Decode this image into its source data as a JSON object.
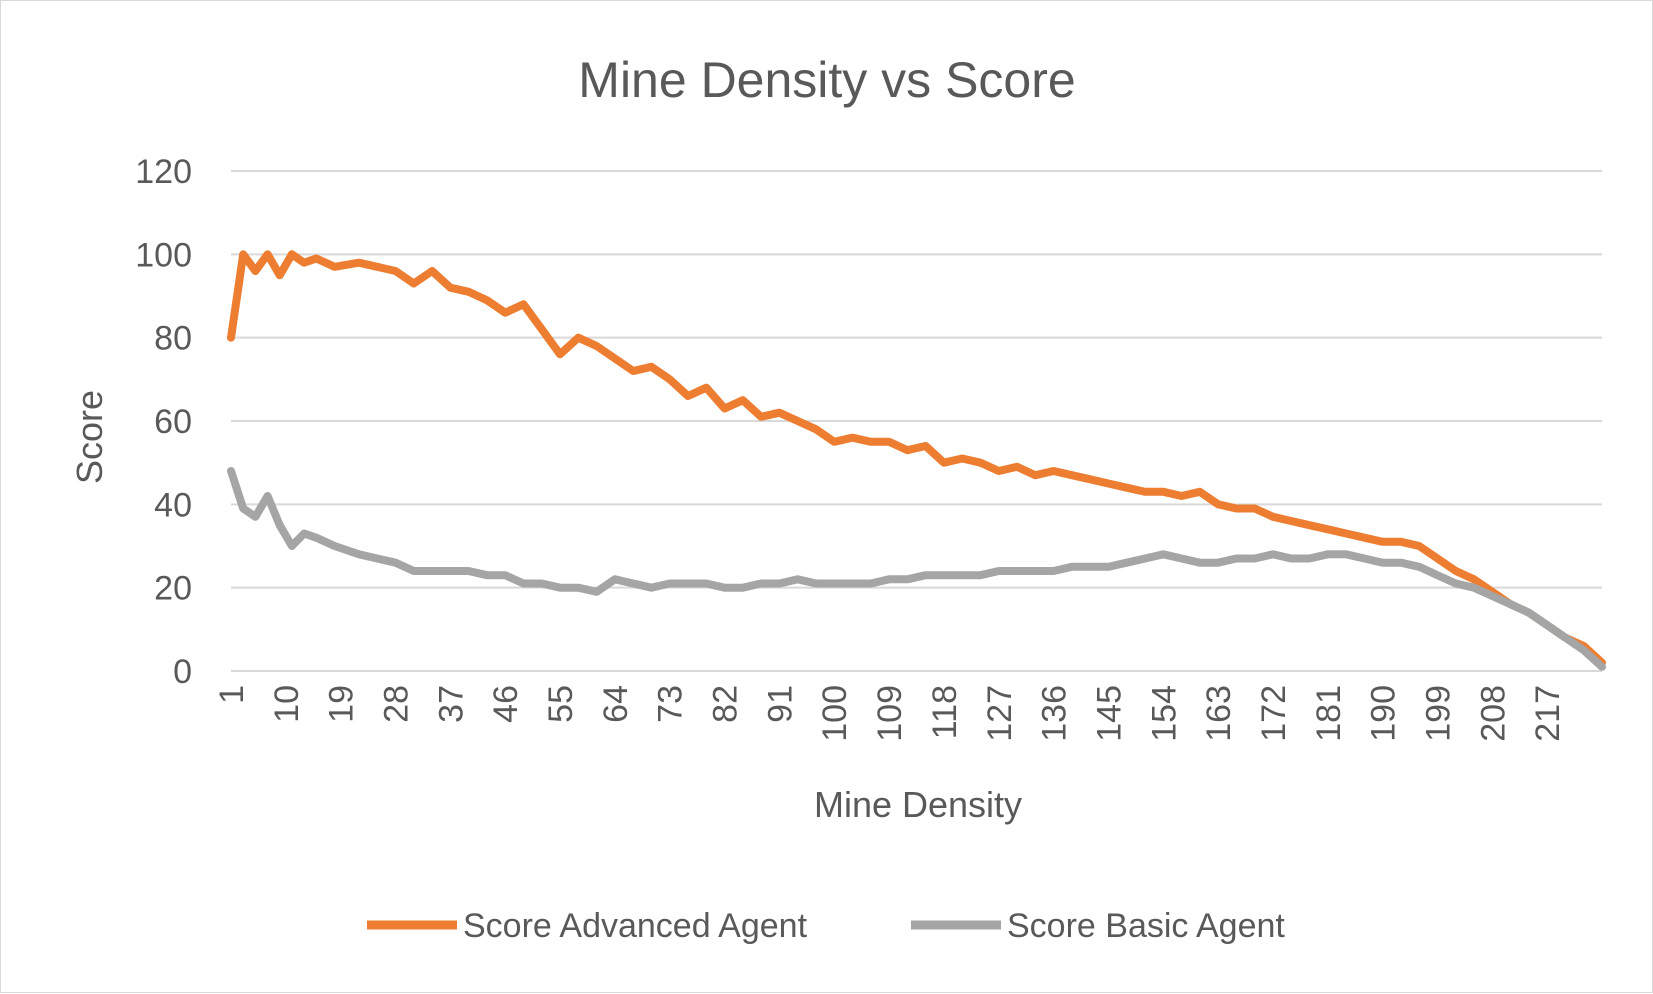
{
  "chart_data": {
    "type": "line",
    "title": "Mine Density vs Score",
    "xlabel": "Mine Density",
    "ylabel": "Score",
    "ylim": [
      0,
      120
    ],
    "yticks": [
      0,
      20,
      40,
      60,
      80,
      100,
      120
    ],
    "x_range": [
      1,
      226
    ],
    "xticks": [
      1,
      10,
      19,
      28,
      37,
      46,
      55,
      64,
      73,
      82,
      91,
      100,
      109,
      118,
      127,
      136,
      145,
      154,
      163,
      172,
      181,
      190,
      199,
      208,
      217
    ],
    "grid": true,
    "legend_position": "bottom",
    "colors": {
      "advanced": "#ed7d31",
      "basic": "#a5a5a5",
      "grid": "#d9d9d9",
      "text": "#595959"
    },
    "series": [
      {
        "name": "Score Advanced Agent",
        "points": [
          [
            1,
            80
          ],
          [
            3,
            100
          ],
          [
            5,
            96
          ],
          [
            7,
            100
          ],
          [
            9,
            95
          ],
          [
            11,
            100
          ],
          [
            13,
            98
          ],
          [
            15,
            99
          ],
          [
            18,
            97
          ],
          [
            22,
            98
          ],
          [
            25,
            97
          ],
          [
            28,
            96
          ],
          [
            31,
            93
          ],
          [
            34,
            96
          ],
          [
            37,
            92
          ],
          [
            40,
            91
          ],
          [
            43,
            89
          ],
          [
            46,
            86
          ],
          [
            49,
            88
          ],
          [
            52,
            82
          ],
          [
            55,
            76
          ],
          [
            58,
            80
          ],
          [
            61,
            78
          ],
          [
            64,
            75
          ],
          [
            67,
            72
          ],
          [
            70,
            73
          ],
          [
            73,
            70
          ],
          [
            76,
            66
          ],
          [
            79,
            68
          ],
          [
            82,
            63
          ],
          [
            85,
            65
          ],
          [
            88,
            61
          ],
          [
            91,
            62
          ],
          [
            94,
            60
          ],
          [
            97,
            58
          ],
          [
            100,
            55
          ],
          [
            103,
            56
          ],
          [
            106,
            55
          ],
          [
            109,
            55
          ],
          [
            112,
            53
          ],
          [
            115,
            54
          ],
          [
            118,
            50
          ],
          [
            121,
            51
          ],
          [
            124,
            50
          ],
          [
            127,
            48
          ],
          [
            130,
            49
          ],
          [
            133,
            47
          ],
          [
            136,
            48
          ],
          [
            139,
            47
          ],
          [
            142,
            46
          ],
          [
            145,
            45
          ],
          [
            148,
            44
          ],
          [
            151,
            43
          ],
          [
            154,
            43
          ],
          [
            157,
            42
          ],
          [
            160,
            43
          ],
          [
            163,
            40
          ],
          [
            166,
            39
          ],
          [
            169,
            39
          ],
          [
            172,
            37
          ],
          [
            175,
            36
          ],
          [
            178,
            35
          ],
          [
            181,
            34
          ],
          [
            184,
            33
          ],
          [
            187,
            32
          ],
          [
            190,
            31
          ],
          [
            193,
            31
          ],
          [
            196,
            30
          ],
          [
            199,
            27
          ],
          [
            202,
            24
          ],
          [
            205,
            22
          ],
          [
            208,
            19
          ],
          [
            211,
            16
          ],
          [
            214,
            14
          ],
          [
            217,
            11
          ],
          [
            220,
            8
          ],
          [
            223,
            6
          ],
          [
            226,
            2
          ]
        ]
      },
      {
        "name": "Score Basic Agent",
        "points": [
          [
            1,
            48
          ],
          [
            3,
            39
          ],
          [
            5,
            37
          ],
          [
            7,
            42
          ],
          [
            9,
            35
          ],
          [
            11,
            30
          ],
          [
            13,
            33
          ],
          [
            15,
            32
          ],
          [
            18,
            30
          ],
          [
            22,
            28
          ],
          [
            25,
            27
          ],
          [
            28,
            26
          ],
          [
            31,
            24
          ],
          [
            34,
            24
          ],
          [
            37,
            24
          ],
          [
            40,
            24
          ],
          [
            43,
            23
          ],
          [
            46,
            23
          ],
          [
            49,
            21
          ],
          [
            52,
            21
          ],
          [
            55,
            20
          ],
          [
            58,
            20
          ],
          [
            61,
            19
          ],
          [
            64,
            22
          ],
          [
            67,
            21
          ],
          [
            70,
            20
          ],
          [
            73,
            21
          ],
          [
            76,
            21
          ],
          [
            79,
            21
          ],
          [
            82,
            20
          ],
          [
            85,
            20
          ],
          [
            88,
            21
          ],
          [
            91,
            21
          ],
          [
            94,
            22
          ],
          [
            97,
            21
          ],
          [
            100,
            21
          ],
          [
            103,
            21
          ],
          [
            106,
            21
          ],
          [
            109,
            22
          ],
          [
            112,
            22
          ],
          [
            115,
            23
          ],
          [
            118,
            23
          ],
          [
            121,
            23
          ],
          [
            124,
            23
          ],
          [
            127,
            24
          ],
          [
            130,
            24
          ],
          [
            133,
            24
          ],
          [
            136,
            24
          ],
          [
            139,
            25
          ],
          [
            142,
            25
          ],
          [
            145,
            25
          ],
          [
            148,
            26
          ],
          [
            151,
            27
          ],
          [
            154,
            28
          ],
          [
            157,
            27
          ],
          [
            160,
            26
          ],
          [
            163,
            26
          ],
          [
            166,
            27
          ],
          [
            169,
            27
          ],
          [
            172,
            28
          ],
          [
            175,
            27
          ],
          [
            178,
            27
          ],
          [
            181,
            28
          ],
          [
            184,
            28
          ],
          [
            187,
            27
          ],
          [
            190,
            26
          ],
          [
            193,
            26
          ],
          [
            196,
            25
          ],
          [
            199,
            23
          ],
          [
            202,
            21
          ],
          [
            205,
            20
          ],
          [
            208,
            18
          ],
          [
            211,
            16
          ],
          [
            214,
            14
          ],
          [
            217,
            11
          ],
          [
            220,
            8
          ],
          [
            223,
            5
          ],
          [
            226,
            1
          ]
        ]
      }
    ]
  }
}
